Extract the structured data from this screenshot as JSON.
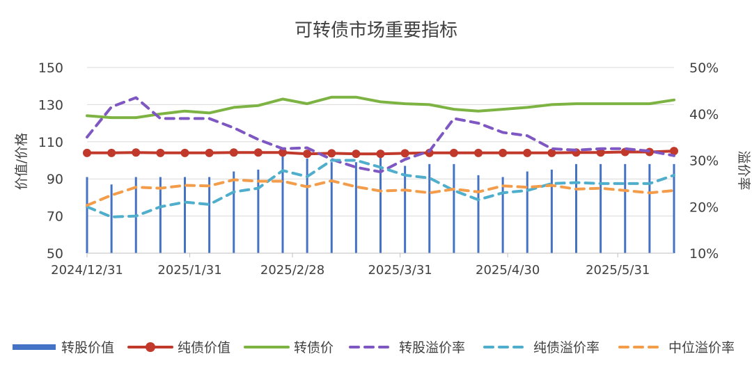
{
  "chart_data": {
    "type": "line",
    "title": "可转债市场重要指标",
    "ylabel_left": "价值/价格",
    "ylabel_right": "溢价率",
    "ylim_left": [
      50,
      150
    ],
    "yticks_left": [
      "150",
      "130",
      "110",
      "90",
      "70",
      "50"
    ],
    "ylim_right": [
      0.1,
      0.5
    ],
    "yticks_right": [
      "50%",
      "40%",
      "30%",
      "20%",
      "10%"
    ],
    "xticks": [
      "2024/12/31",
      "2025/1/31",
      "2025/2/28",
      "2025/3/31",
      "2025/4/30",
      "2025/5/31"
    ],
    "grid": true,
    "legend_position": "bottom",
    "colors": {
      "转股价值": "#4472c4",
      "纯债价值": "#c0392b",
      "转债价": "#7cb342",
      "转股溢价率": "#7e57c2",
      "纯债溢价率": "#4eaecb",
      "中位溢价率": "#f39c4a"
    },
    "series": [
      {
        "name": "转股价值",
        "axis": "left",
        "style": "bar",
        "values": [
          91,
          87,
          91,
          91,
          91,
          91,
          94,
          95,
          104,
          101,
          99,
          99,
          104,
          97,
          98,
          98,
          92,
          91,
          94,
          95,
          98,
          98,
          98,
          98,
          98
        ]
      },
      {
        "name": "纯债价值",
        "axis": "left",
        "style": "line-marker",
        "values": [
          104,
          104,
          104.2,
          104,
          104,
          104,
          104.2,
          104.2,
          104.2,
          103.5,
          103.8,
          103.5,
          103.5,
          103.8,
          104,
          104,
          104,
          104,
          104,
          104,
          104.2,
          104.2,
          104.5,
          104.5,
          105
        ]
      },
      {
        "name": "转债价",
        "axis": "left",
        "style": "line",
        "values": [
          124,
          123,
          123,
          125,
          126.5,
          125.5,
          128.5,
          129.5,
          133,
          130.5,
          134,
          134,
          131.5,
          130.5,
          130,
          127.5,
          126.5,
          127.5,
          128.5,
          130,
          130.5,
          130.5,
          130.5,
          130.5,
          132.5
        ]
      },
      {
        "name": "转股溢价率",
        "axis": "right",
        "style": "dashed",
        "values": [
          0.35,
          0.415,
          0.435,
          0.39,
          0.39,
          0.39,
          0.37,
          0.345,
          0.325,
          0.327,
          0.302,
          0.285,
          0.275,
          0.302,
          0.32,
          0.39,
          0.38,
          0.36,
          0.353,
          0.325,
          0.322,
          0.325,
          0.325,
          0.32,
          0.31
        ]
      },
      {
        "name": "纯债溢价率",
        "axis": "right",
        "style": "dashed",
        "values": [
          0.2,
          0.178,
          0.18,
          0.2,
          0.21,
          0.205,
          0.232,
          0.24,
          0.278,
          0.265,
          0.3,
          0.3,
          0.285,
          0.268,
          0.262,
          0.235,
          0.215,
          0.23,
          0.235,
          0.25,
          0.252,
          0.25,
          0.25,
          0.25,
          0.268
        ]
      },
      {
        "name": "中位溢价率",
        "axis": "right",
        "style": "dashed",
        "values": [
          0.203,
          0.225,
          0.242,
          0.24,
          0.246,
          0.245,
          0.258,
          0.255,
          0.255,
          0.243,
          0.256,
          0.243,
          0.234,
          0.236,
          0.23,
          0.238,
          0.232,
          0.245,
          0.242,
          0.246,
          0.238,
          0.24,
          0.235,
          0.23,
          0.235
        ]
      }
    ]
  }
}
